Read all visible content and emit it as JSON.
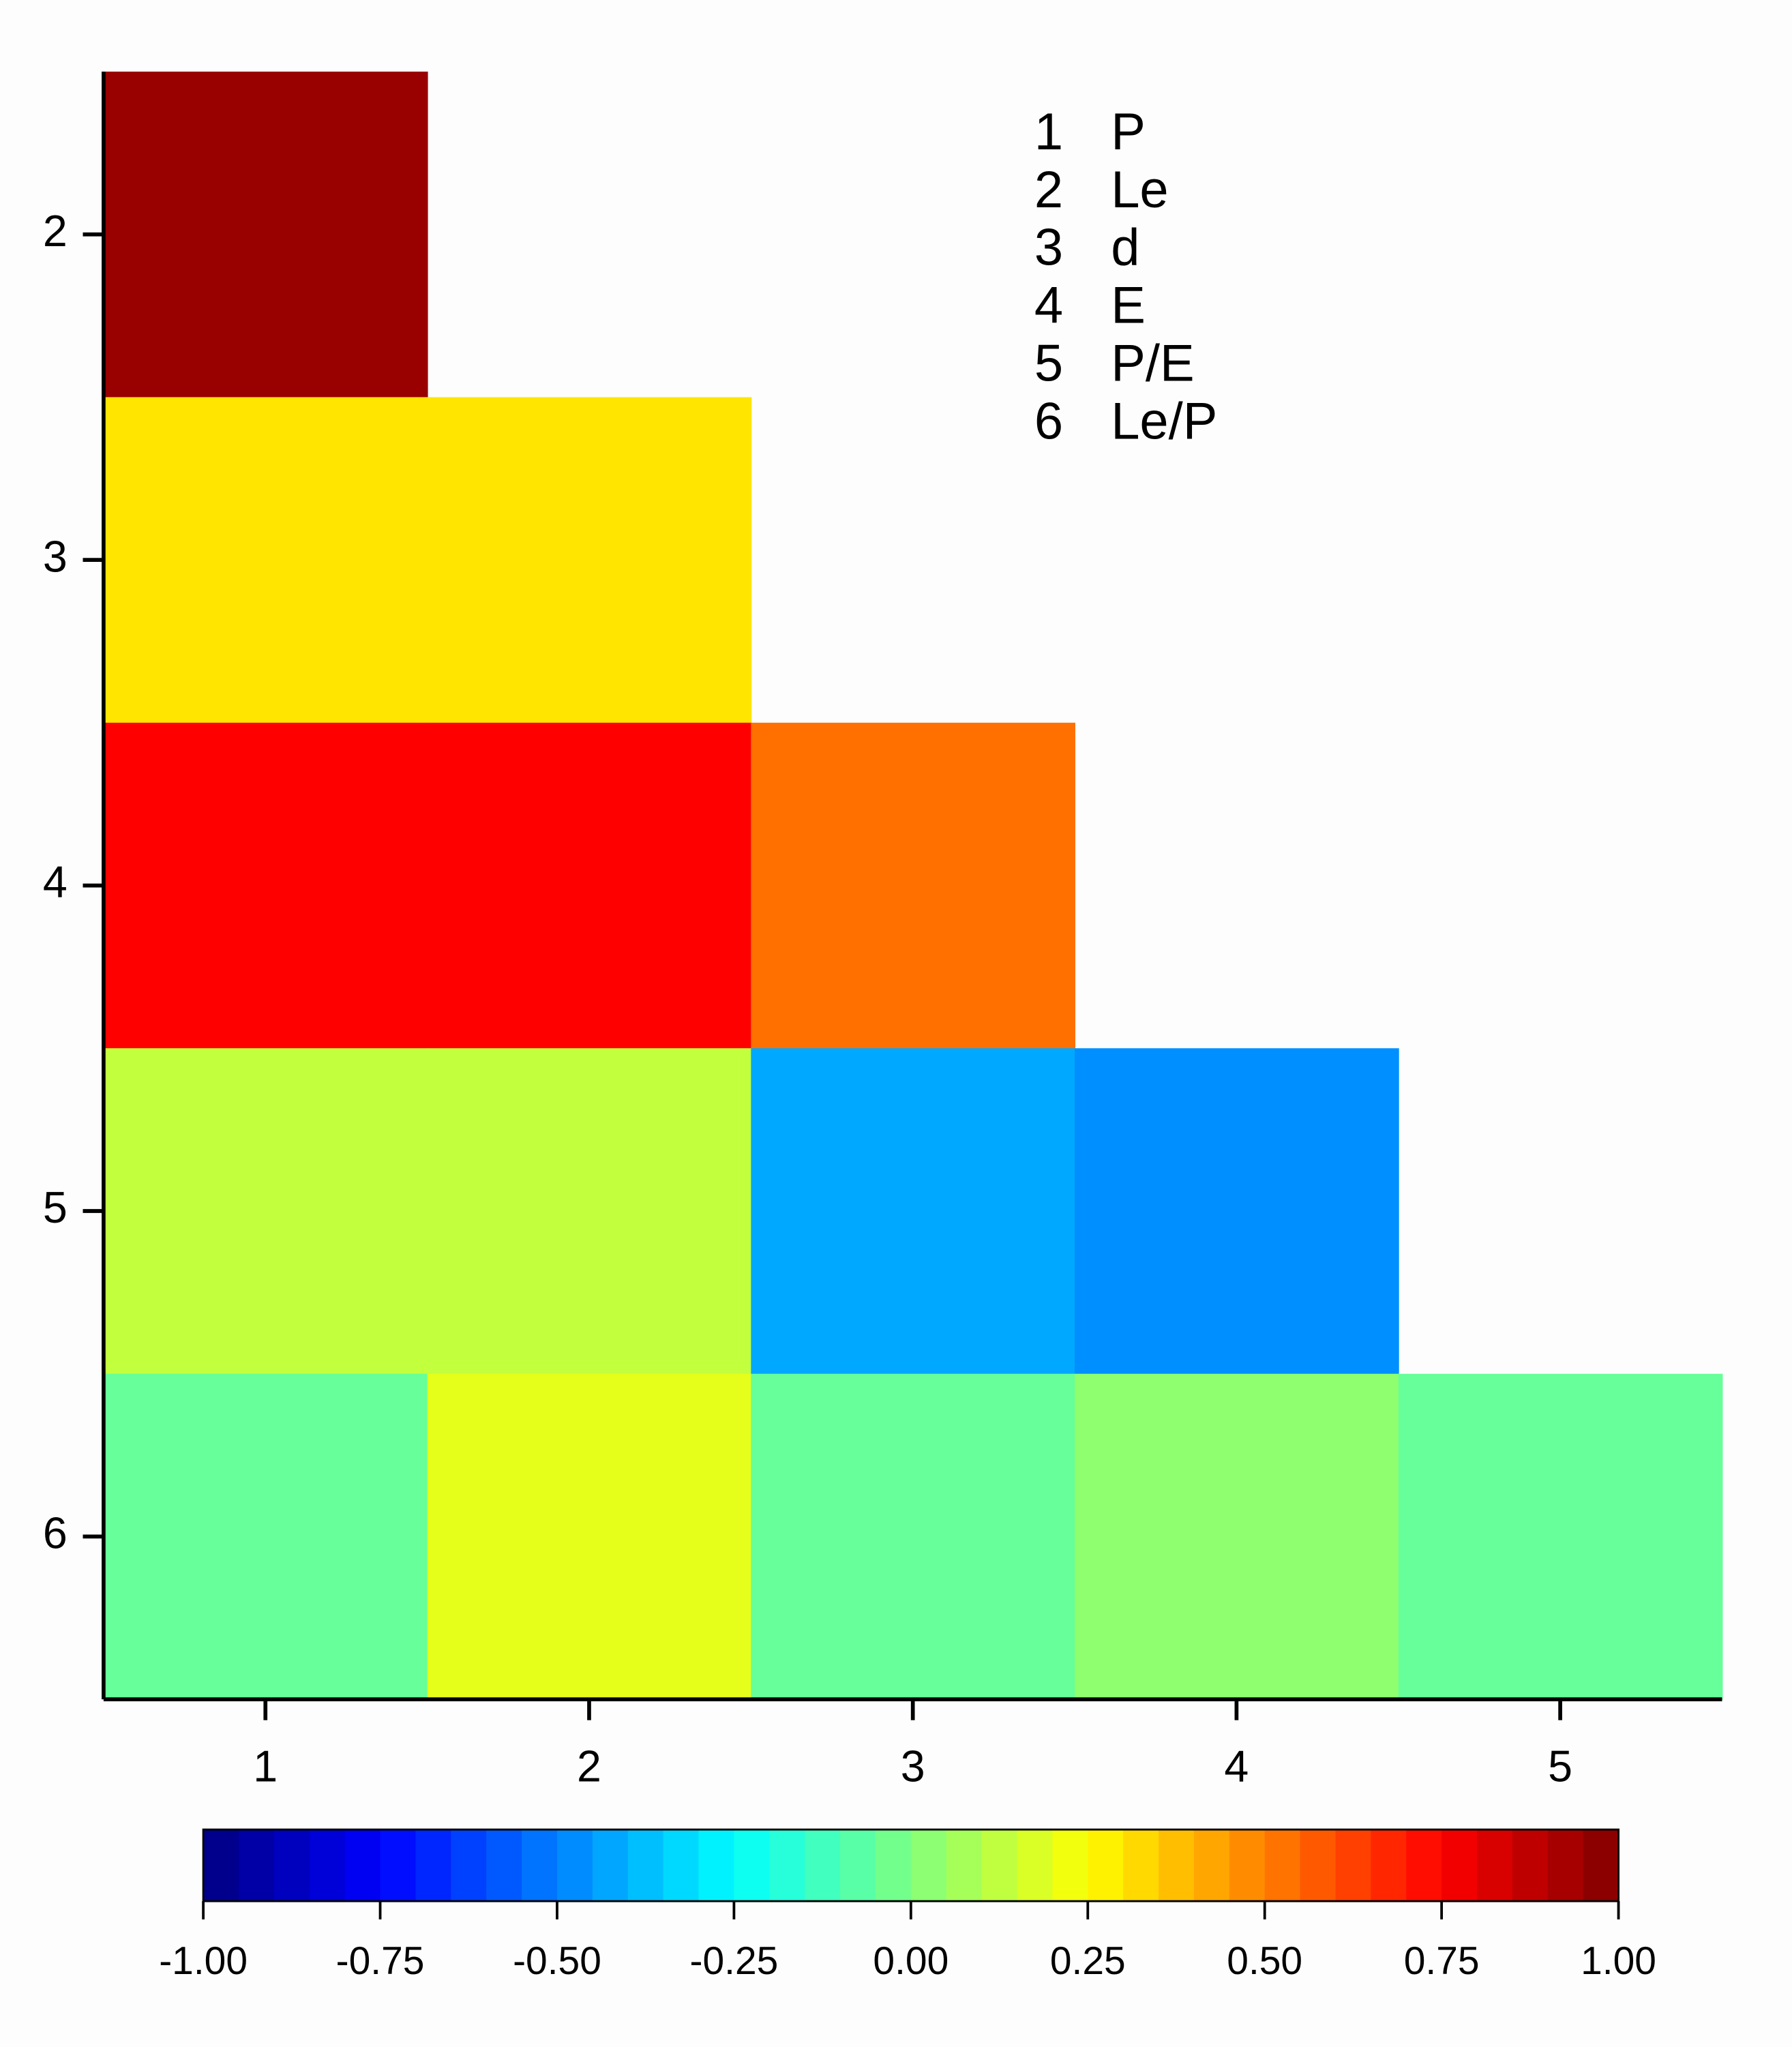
{
  "chart_data": {
    "type": "heatmap",
    "x": [
      1,
      2,
      3,
      4,
      5
    ],
    "y": [
      2,
      3,
      4,
      5,
      6
    ],
    "values": [
      [
        0.95,
        null,
        null,
        null,
        null
      ],
      [
        0.3,
        0.3,
        null,
        null,
        null
      ],
      [
        0.75,
        0.75,
        0.53,
        null,
        null
      ],
      [
        0.13,
        0.13,
        -0.42,
        -0.47,
        null
      ],
      [
        -0.05,
        0.2,
        -0.05,
        0.03,
        -0.05
      ]
    ],
    "colormap": "jet",
    "colorbar": {
      "lim": [
        -1,
        1
      ],
      "ticks": [
        {
          "value": -1,
          "label": "-1.00"
        },
        {
          "value": -0.75,
          "label": "-0.75"
        },
        {
          "value": -0.5,
          "label": "-0.50"
        },
        {
          "value": -0.25,
          "label": "-0.25"
        },
        {
          "value": 0,
          "label": "0.00"
        },
        {
          "value": 0.25,
          "label": "0.25"
        },
        {
          "value": 0.5,
          "label": "0.50"
        },
        {
          "value": 0.75,
          "label": "0.75"
        },
        {
          "value": 1,
          "label": "1.00"
        }
      ]
    },
    "legend": [
      {
        "code": "1",
        "name": "P"
      },
      {
        "code": "2",
        "name": "Le"
      },
      {
        "code": "3",
        "name": "d"
      },
      {
        "code": "4",
        "name": "E"
      },
      {
        "code": "5",
        "name": "P/E"
      },
      {
        "code": "6",
        "name": "Le/P"
      }
    ]
  }
}
